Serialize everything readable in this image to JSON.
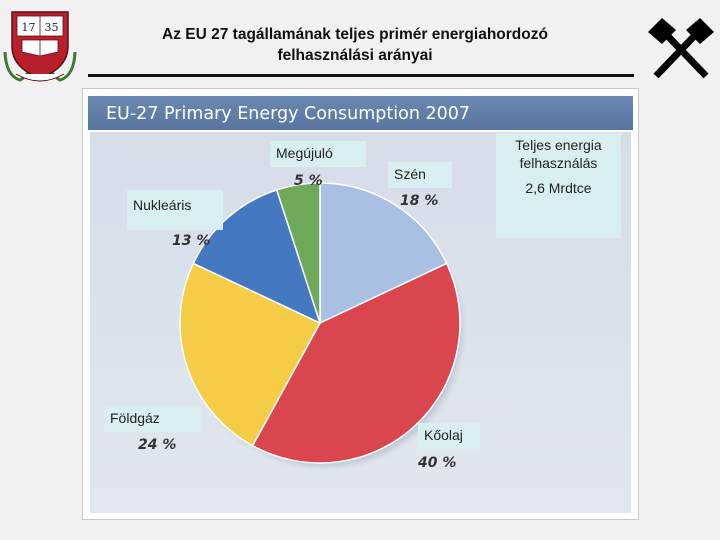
{
  "slide": {
    "title_line1": "Az EU 27 tagállamának teljes primér energiahordozó",
    "title_line2": "felhasználási arányai"
  },
  "logo_left": {
    "year_left": "17",
    "year_right": "35"
  },
  "chart_data": {
    "type": "pie",
    "title": "EU-27 Primary Energy Consumption 2007",
    "slices": [
      {
        "label": "Szén",
        "value": 18,
        "value_text": "18 %",
        "color": "#a9c0e2"
      },
      {
        "label": "Kőolaj",
        "value": 40,
        "value_text": "40 %",
        "color": "#d9464d"
      },
      {
        "label": "Földgáz",
        "value": 24,
        "value_text": "24 %",
        "color": "#f5cc45"
      },
      {
        "label": "Nukleáris",
        "value": 13,
        "value_text": "13 %",
        "color": "#4479c2"
      },
      {
        "label": "Megújuló",
        "value": 5,
        "value_text": "5 %",
        "color": "#6faa5b"
      }
    ]
  },
  "total_box": {
    "label_line1": "Teljes energia",
    "label_line2": "felhasználás",
    "value": "2,6 Mrdtce"
  }
}
